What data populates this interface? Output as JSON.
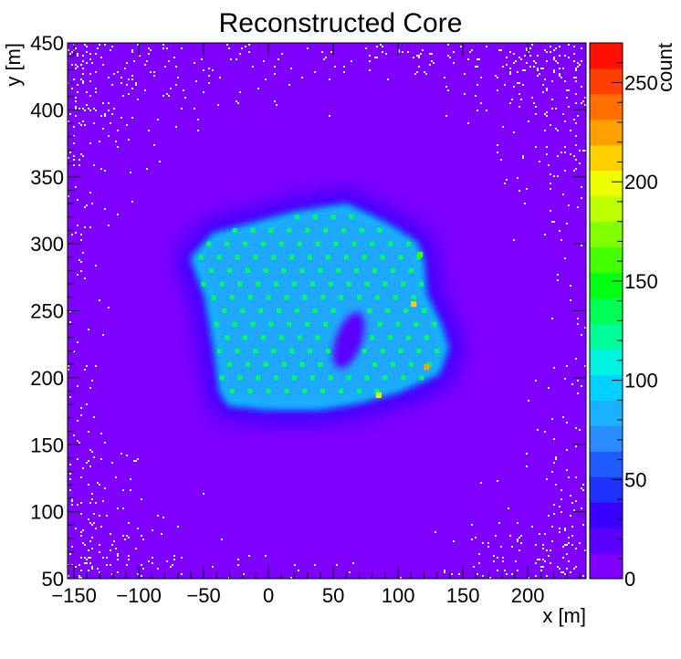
{
  "chart_data": {
    "type": "heatmap",
    "title": "Reconstructed Core",
    "xlabel": "x [m]",
    "ylabel": "y [m]",
    "zlabel": "count",
    "xlim": [
      -155,
      245
    ],
    "ylim": [
      50,
      450
    ],
    "zlim": [
      0,
      270
    ],
    "x_ticks": [
      -150,
      -100,
      -50,
      0,
      50,
      100,
      150,
      200
    ],
    "y_ticks": [
      50,
      100,
      150,
      200,
      250,
      300,
      350,
      400,
      450
    ],
    "z_ticks": [
      0,
      50,
      100,
      150,
      200,
      250
    ],
    "x_tick_labels": [
      "−150",
      "−100",
      "−50",
      "0",
      "50",
      "100",
      "150",
      "200"
    ],
    "y_tick_labels": [
      "50",
      "100",
      "150",
      "200",
      "250",
      "300",
      "350",
      "400",
      "450"
    ],
    "z_tick_labels": [
      "0",
      "50",
      "100",
      "150",
      "200",
      "250"
    ],
    "background_level": 3,
    "array_footprint": {
      "polygon": [
        [
          -58,
          289
        ],
        [
          -42,
          306
        ],
        [
          20,
          322
        ],
        [
          60,
          328
        ],
        [
          90,
          314
        ],
        [
          113,
          300
        ],
        [
          118,
          287
        ],
        [
          120,
          262
        ],
        [
          132,
          238
        ],
        [
          137,
          222
        ],
        [
          130,
          204
        ],
        [
          100,
          191
        ],
        [
          70,
          183
        ],
        [
          40,
          178
        ],
        [
          0,
          178
        ],
        [
          -30,
          181
        ],
        [
          -36,
          190
        ],
        [
          -40,
          220
        ],
        [
          -47,
          260
        ],
        [
          -58,
          289
        ]
      ],
      "level": 80,
      "halo_level": 35
    },
    "detector_grid": {
      "row_start": [
        -42,
        190
      ],
      "row_step": [
        14,
        0
      ],
      "col_step": [
        -1,
        10
      ],
      "level": 140
    },
    "hot_spots": [
      {
        "x": 117,
        "y": 292,
        "value": 160
      },
      {
        "x": 112,
        "y": 255,
        "value": 210
      },
      {
        "x": 122,
        "y": 208,
        "value": 220
      },
      {
        "x": 85,
        "y": 187,
        "value": 200
      }
    ],
    "hole": {
      "x": 62,
      "y": 228,
      "rx": 10,
      "ry": 22
    }
  }
}
